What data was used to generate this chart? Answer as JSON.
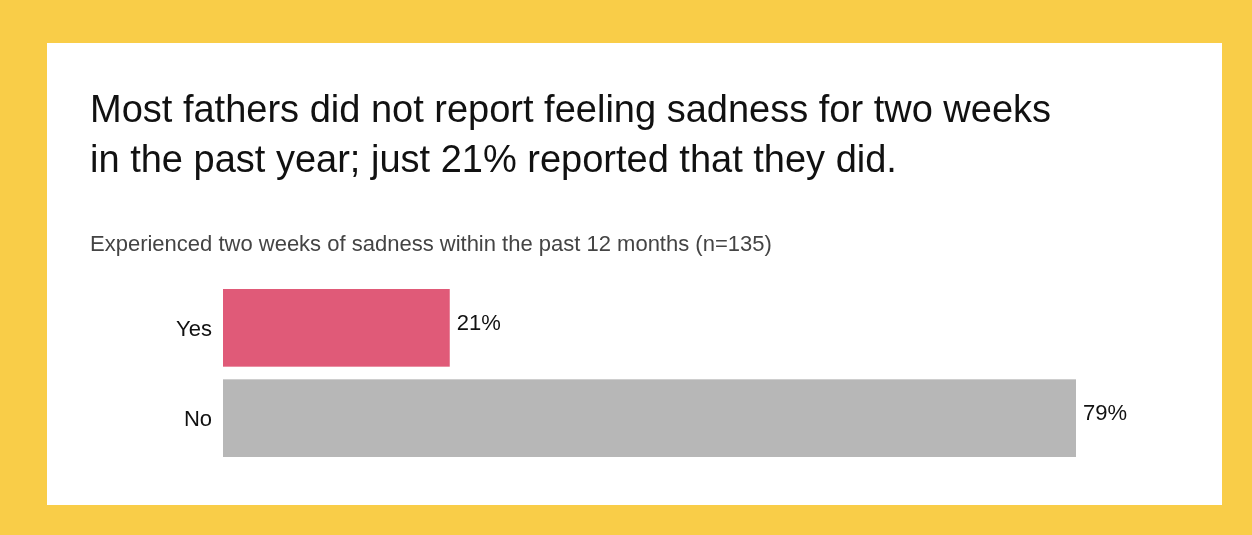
{
  "chart_data": {
    "type": "bar",
    "orientation": "horizontal",
    "title": "Most fathers did not report feeling sadness for two weeks in the past year; just 21% reported that they did.",
    "subtitle": "Experienced two weeks of sadness within the past 12 months (n=135)",
    "categories": [
      "Yes",
      "No"
    ],
    "values": [
      21,
      79
    ],
    "colors": [
      "#e05a78",
      "#b7b7b7"
    ],
    "relative": false,
    "data_labels": true,
    "value_labels": [
      "21%",
      "79%"
    ]
  }
}
